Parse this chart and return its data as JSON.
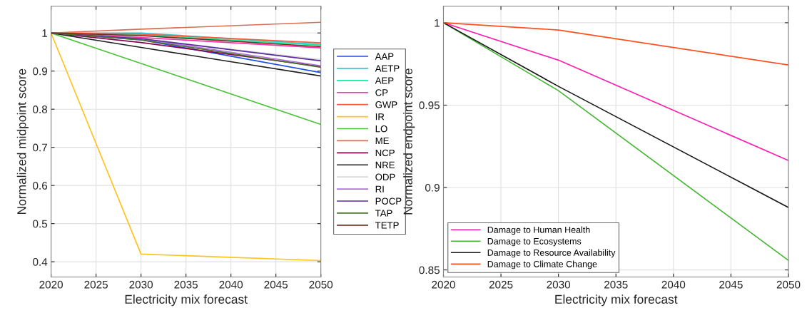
{
  "chart_data": [
    {
      "type": "line",
      "xlabel": "Electricity mix forecast",
      "ylabel": "Normalized midpoint score",
      "x": [
        2020,
        2030,
        2050
      ],
      "xlim": [
        2020,
        2050
      ],
      "xticks": [
        2020,
        2025,
        2030,
        2035,
        2040,
        2045,
        2050
      ],
      "ylim": [
        0.36,
        1.07
      ],
      "yticks": [
        0.4,
        0.5,
        0.6,
        0.7,
        0.8,
        0.9,
        1
      ],
      "grid": true,
      "legend": "right",
      "marker": "none",
      "line_style": "solid",
      "series": [
        {
          "name": "AAP",
          "color": "#1f4fe0",
          "values": [
            1,
            0.982,
            0.896
          ]
        },
        {
          "name": "AETP",
          "color": "#33c8d8",
          "values": [
            1,
            1.0,
            0.97
          ]
        },
        {
          "name": "AEP",
          "color": "#1de9a0",
          "values": [
            1,
            0.995,
            0.968
          ]
        },
        {
          "name": "CP",
          "color": "#ff2fa8",
          "values": [
            1,
            0.988,
            0.961
          ]
        },
        {
          "name": "GWP",
          "color": "#ff5a3c",
          "values": [
            1,
            0.997,
            0.974
          ]
        },
        {
          "name": "IR",
          "color": "#ffc21e",
          "values": [
            1,
            0.42,
            0.403
          ]
        },
        {
          "name": "LO",
          "color": "#4cc43a",
          "values": [
            1,
            0.92,
            0.76
          ]
        },
        {
          "name": "ME",
          "color": "#d87050",
          "values": [
            1,
            1.01,
            1.028
          ]
        },
        {
          "name": "NCP",
          "color": "#8a0050",
          "values": [
            1,
            0.975,
            0.912
          ]
        },
        {
          "name": "NRE",
          "color": "#202020",
          "values": [
            1,
            0.962,
            0.887
          ]
        },
        {
          "name": "ODP",
          "color": "#d8d8d8",
          "values": [
            1,
            0.985,
            0.93
          ]
        },
        {
          "name": "RI",
          "color": "#b070e0",
          "values": [
            1,
            0.985,
            0.914
          ]
        },
        {
          "name": "POCP",
          "color": "#5a2aa0",
          "values": [
            1,
            0.985,
            0.927
          ]
        },
        {
          "name": "TAP",
          "color": "#4a7030",
          "values": [
            1,
            0.982,
            0.91
          ]
        },
        {
          "name": "TETP",
          "color": "#6a3020",
          "values": [
            1,
            0.993,
            0.964
          ]
        }
      ]
    },
    {
      "type": "line",
      "xlabel": "Electricity mix forecast",
      "ylabel": "Normalized endpoint score",
      "x": [
        2020,
        2030,
        2050
      ],
      "xlim": [
        2020,
        2050
      ],
      "xticks": [
        2020,
        2025,
        2030,
        2035,
        2040,
        2045,
        2050
      ],
      "ylim": [
        0.8457,
        1.01
      ],
      "yticks": [
        0.85,
        0.9,
        0.95,
        1
      ],
      "grid": true,
      "legend": "bottom left",
      "marker": "none",
      "line_style": "solid",
      "series": [
        {
          "name": "Damage to Human Health",
          "color": "#ff1fb0",
          "values": [
            1,
            0.9773,
            0.9164
          ]
        },
        {
          "name": "Damage to Ecosystems",
          "color": "#44b832",
          "values": [
            1,
            0.9588,
            0.8558
          ]
        },
        {
          "name": "Damage to Resource Availability",
          "color": "#1a1a1a",
          "values": [
            1,
            0.9614,
            0.8879
          ]
        },
        {
          "name": "Damage to Climate Change",
          "color": "#ff5020",
          "values": [
            1,
            0.9956,
            0.9744
          ]
        }
      ]
    }
  ]
}
